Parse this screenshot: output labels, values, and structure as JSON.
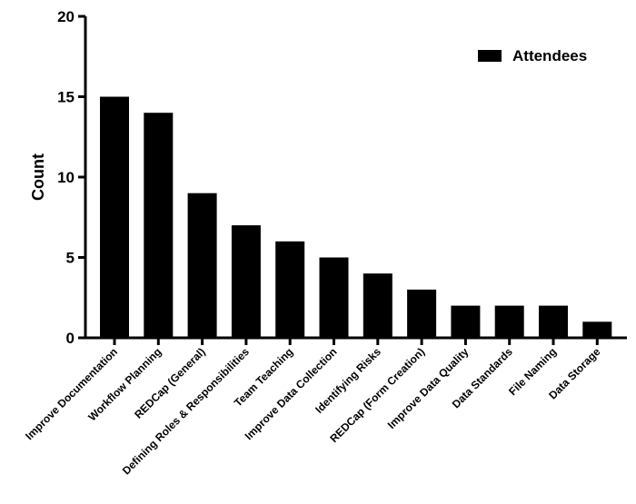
{
  "chart_data": {
    "type": "bar",
    "categories": [
      "Improve Documentation",
      "Workflow Planning",
      "REDCap (General)",
      "Defining Roles & Responsibilities",
      "Team Teaching",
      "Improve Data Collection",
      "Identifying Risks",
      "REDCap (Form Creation)",
      "Improve Data Quality",
      "Data Standards",
      "File Naming",
      "Data Storage"
    ],
    "series": [
      {
        "name": "Attendees",
        "values": [
          15,
          14,
          9,
          7,
          6,
          5,
          4,
          3,
          2,
          2,
          2,
          1
        ]
      }
    ],
    "title": "",
    "xlabel": "",
    "ylabel": "Count",
    "ylim": [
      0,
      20
    ],
    "yticks": [
      0,
      5,
      10,
      15,
      20
    ],
    "grid": false,
    "legend_position": "top-right",
    "bar_color": "#000000"
  }
}
